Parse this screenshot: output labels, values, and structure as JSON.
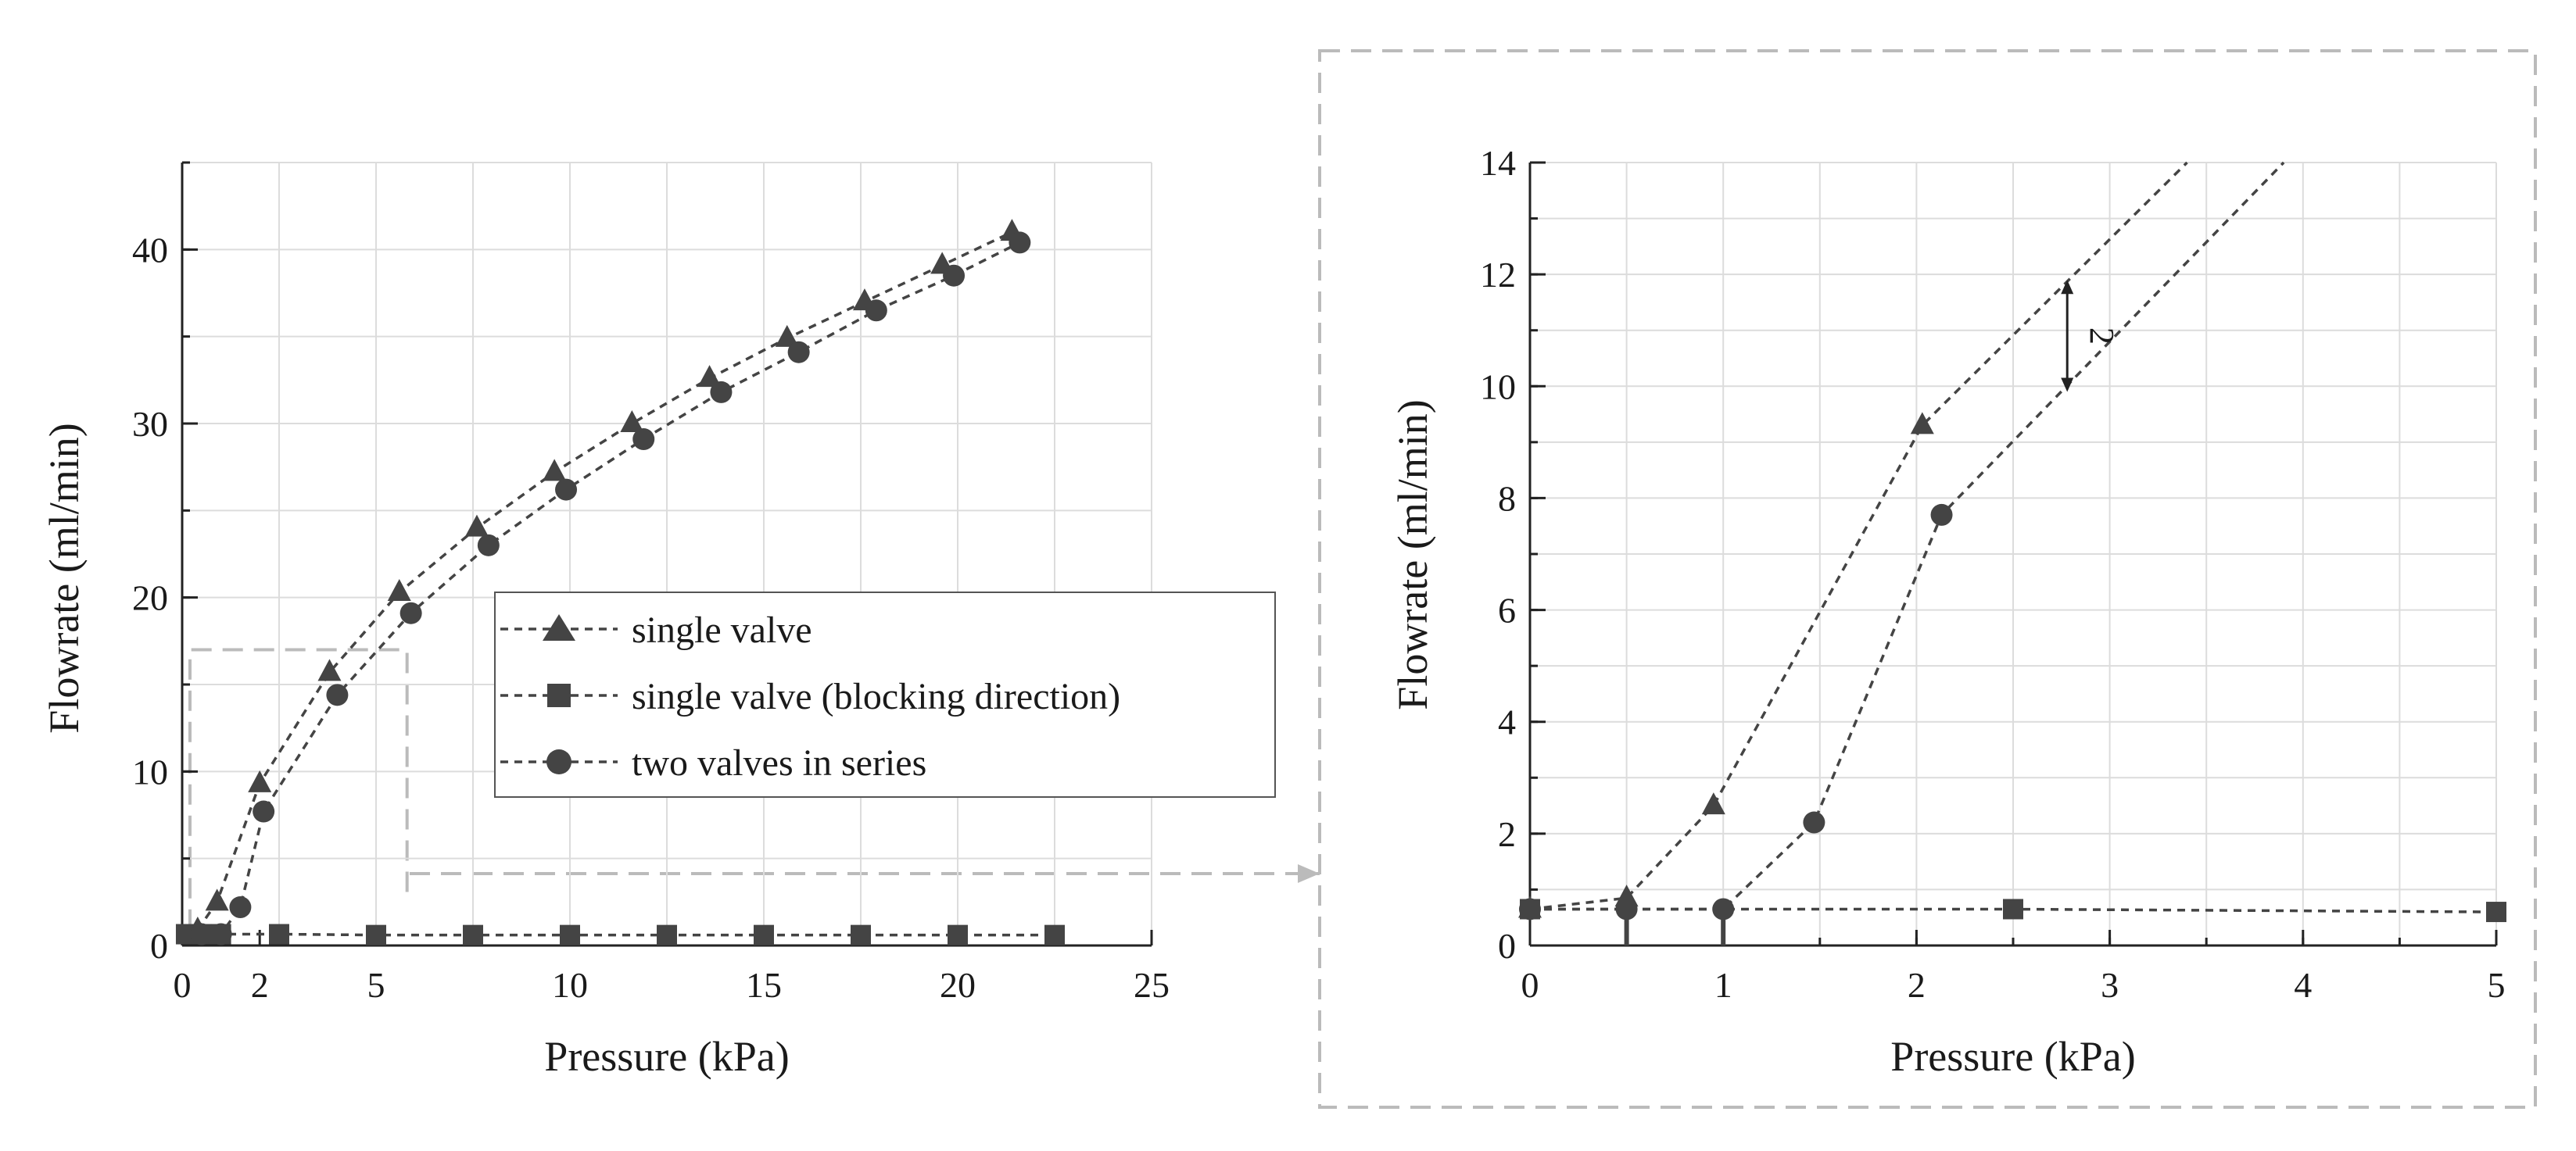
{
  "colors": {
    "series": "#444444",
    "zoom_box": "#bbbbbb",
    "grid": "#dcdcdc"
  },
  "chart_data": [
    {
      "type": "line",
      "xlabel": "Pressure (kPa)",
      "ylabel": "Flowrate (ml/min)",
      "xlim": [
        0,
        25
      ],
      "ylim": [
        0,
        45
      ],
      "x_ticks": [
        0,
        2,
        5,
        10,
        15,
        20,
        25
      ],
      "y_ticks": [
        0,
        10,
        20,
        30,
        40
      ],
      "grid": true,
      "series": [
        {
          "name": "single valve",
          "marker": "triangle",
          "x": [
            0.4,
            0.9,
            2.0,
            3.8,
            5.6,
            7.6,
            9.6,
            11.6,
            13.6,
            15.6,
            17.6,
            19.6,
            21.4
          ],
          "y": [
            0.9,
            2.5,
            9.3,
            15.7,
            20.3,
            24.0,
            27.2,
            30.0,
            32.6,
            34.9,
            37.0,
            39.1,
            41.0
          ]
        },
        {
          "name": "single valve (blocking direction)",
          "marker": "square",
          "x": [
            0.1,
            0.5,
            1.0,
            2.5,
            5.0,
            7.5,
            10.0,
            12.5,
            15.0,
            17.5,
            20.0,
            22.5
          ],
          "y": [
            0.65,
            0.65,
            0.65,
            0.65,
            0.6,
            0.6,
            0.6,
            0.6,
            0.6,
            0.6,
            0.6,
            0.6
          ]
        },
        {
          "name": "two valves in series",
          "marker": "circle",
          "x": [
            0.5,
            1.0,
            1.5,
            2.1,
            4.0,
            5.9,
            7.9,
            9.9,
            11.9,
            13.9,
            15.9,
            17.9,
            19.9,
            21.6
          ],
          "y": [
            0.65,
            0.65,
            2.2,
            7.7,
            14.4,
            19.1,
            23.0,
            26.2,
            29.1,
            31.8,
            34.1,
            36.5,
            38.5,
            40.4
          ]
        }
      ],
      "legend": {
        "position": "center-right",
        "entries": [
          "single valve",
          "single valve (blocking direction)",
          "two valves in series"
        ]
      },
      "zoom_region": {
        "x": [
          0,
          5.8
        ],
        "y": [
          0,
          17
        ]
      }
    },
    {
      "type": "line",
      "xlabel": "Pressure (kPa)",
      "ylabel": "Flowrate (ml/min)",
      "xlim": [
        0,
        5
      ],
      "ylim": [
        0,
        14
      ],
      "x_ticks": [
        0,
        1,
        2,
        3,
        4,
        5
      ],
      "y_ticks": [
        0,
        2,
        4,
        6,
        8,
        10,
        12,
        14
      ],
      "grid": true,
      "series": [
        {
          "name": "single valve",
          "marker": "triangle",
          "x": [
            0,
            0.5,
            0.95,
            2.03,
            3.4
          ],
          "y": [
            0.65,
            0.85,
            2.5,
            9.3,
            14.0
          ],
          "marker_count": 4
        },
        {
          "name": "single valve (blocking direction)",
          "marker": "square",
          "x": [
            0,
            2.5,
            5.0
          ],
          "y": [
            0.65,
            0.65,
            0.6
          ],
          "marker_count": 3
        },
        {
          "name": "two valves in series",
          "marker": "circle",
          "x": [
            0,
            0.5,
            1.0,
            1.47,
            2.13,
            3.9
          ],
          "y": [
            0.65,
            0.65,
            0.65,
            2.2,
            7.7,
            14.0
          ],
          "marker_count": 5
        }
      ],
      "annotation": {
        "text": "2",
        "x": 2.78,
        "y_from": 11.9,
        "y_to": 9.9
      }
    }
  ]
}
